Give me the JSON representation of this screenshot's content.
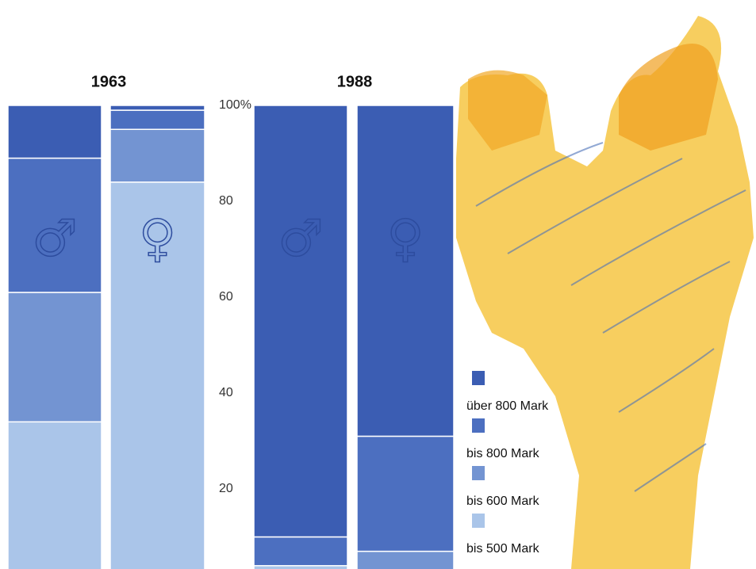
{
  "chart_data": {
    "type": "bar",
    "stacked": true,
    "groups": [
      "1963",
      "1988"
    ],
    "categories": [
      "♂",
      "♀",
      "♂",
      "♀"
    ],
    "series": [
      {
        "name": "über 800 Mark",
        "color": "#3b5db3",
        "values": [
          11,
          1,
          90,
          69
        ]
      },
      {
        "name": "bis 800 Mark",
        "color": "#4c6fc0",
        "values": [
          28,
          4,
          6,
          24
        ]
      },
      {
        "name": "bis 600 Mark",
        "color": "#7394d2",
        "values": [
          27,
          11,
          0,
          7
        ]
      },
      {
        "name": "bis 500 Mark",
        "color": "#aac5e9",
        "values": [
          34,
          84,
          4,
          0
        ]
      }
    ],
    "ylim": [
      0,
      100
    ],
    "yticks": [
      20,
      40,
      60,
      80,
      {
        "value": 100,
        "label": "100%"
      }
    ]
  }
}
